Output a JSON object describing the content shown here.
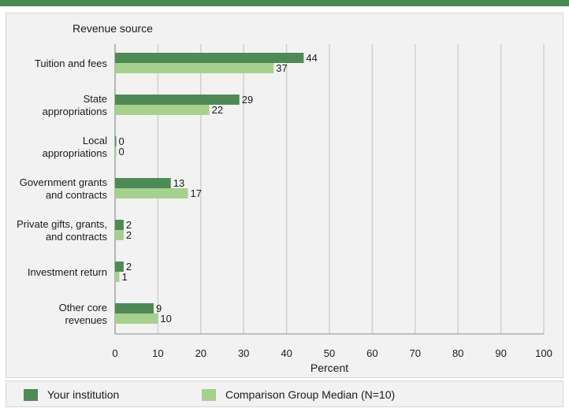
{
  "colors": {
    "top_bar": "#4a8a50",
    "your_institution": "#4e8a55",
    "comparison": "#a6d08d",
    "grid": "#d0d0d0"
  },
  "chart_data": {
    "type": "bar",
    "orientation": "horizontal",
    "title": "Revenue source",
    "xlabel": "Percent",
    "ylabel": "",
    "xlim": [
      0,
      100
    ],
    "x_ticks": [
      0,
      10,
      20,
      30,
      40,
      50,
      60,
      70,
      80,
      90,
      100
    ],
    "grid": "vertical",
    "legend_position": "bottom",
    "categories": [
      [
        "Tuition and fees"
      ],
      [
        "State",
        "appropriations"
      ],
      [
        "Local",
        "appropriations"
      ],
      [
        "Government grants",
        "and contracts"
      ],
      [
        "Private gifts, grants,",
        "and contracts"
      ],
      [
        "Investment return"
      ],
      [
        "Other core",
        "revenues"
      ]
    ],
    "series": [
      {
        "name": "Your institution",
        "values": [
          44,
          29,
          0,
          13,
          2,
          2,
          9
        ]
      },
      {
        "name": "Comparison Group Median (N=10)",
        "values": [
          37,
          22,
          0,
          17,
          2,
          1,
          10
        ]
      }
    ]
  }
}
